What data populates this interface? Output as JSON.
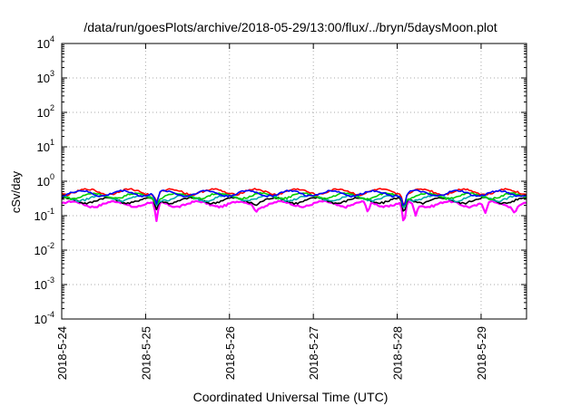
{
  "chart_data": {
    "type": "line",
    "title": "/data/run/goesPlots/archive/2018-05-29/13:00/flux/../bryn/5daysMoon.plot",
    "xlabel": "Coordinated Universal Time (UTC)",
    "ylabel": "cSv/day",
    "y_scale": "log",
    "ylim": [
      0.0001,
      10000
    ],
    "y_ticks": [
      {
        "base": "10",
        "exp": "-4"
      },
      {
        "base": "10",
        "exp": "-3"
      },
      {
        "base": "10",
        "exp": "-2"
      },
      {
        "base": "10",
        "exp": "-1"
      },
      {
        "base": "10",
        "exp": "0"
      },
      {
        "base": "10",
        "exp": "1"
      },
      {
        "base": "10",
        "exp": "2"
      },
      {
        "base": "10",
        "exp": "3"
      },
      {
        "base": "10",
        "exp": "4"
      }
    ],
    "x_start": "2018-05-24",
    "x_end": "2018-05-29 13:00",
    "x_ticks": [
      "2018-5-24",
      "2018-5-25",
      "2018-5-26",
      "2018-5-27",
      "2018-5-28",
      "2018-5-29"
    ],
    "grid": true,
    "series": [
      {
        "color": "#ff00ff",
        "level": 0.22,
        "dips": [
          [
            1.13,
            0.07
          ],
          [
            4.08,
            0.055
          ],
          [
            4.22,
            0.1
          ],
          [
            2.32,
            0.13
          ],
          [
            3.65,
            0.13
          ],
          [
            5.05,
            0.12
          ],
          [
            5.4,
            0.12
          ]
        ]
      },
      {
        "color": "#000000",
        "level": 0.28,
        "dips": [
          [
            1.13,
            0.15
          ],
          [
            4.08,
            0.12
          ],
          [
            2.32,
            0.2
          ]
        ]
      },
      {
        "color": "#00aaaa",
        "level": 0.33,
        "dips": [
          [
            1.13,
            0.2
          ],
          [
            4.08,
            0.16
          ]
        ]
      },
      {
        "color": "#00cc00",
        "level": 0.38,
        "dips": [
          [
            1.13,
            0.22
          ],
          [
            4.08,
            0.18
          ]
        ]
      },
      {
        "color": "#ff0000",
        "level": 0.5,
        "dips": [
          [
            1.13,
            0.25
          ],
          [
            4.08,
            0.2
          ]
        ]
      },
      {
        "color": "#0000ff",
        "level": 0.45,
        "dips": [
          [
            1.13,
            0.22
          ],
          [
            4.08,
            0.18
          ]
        ]
      }
    ]
  }
}
